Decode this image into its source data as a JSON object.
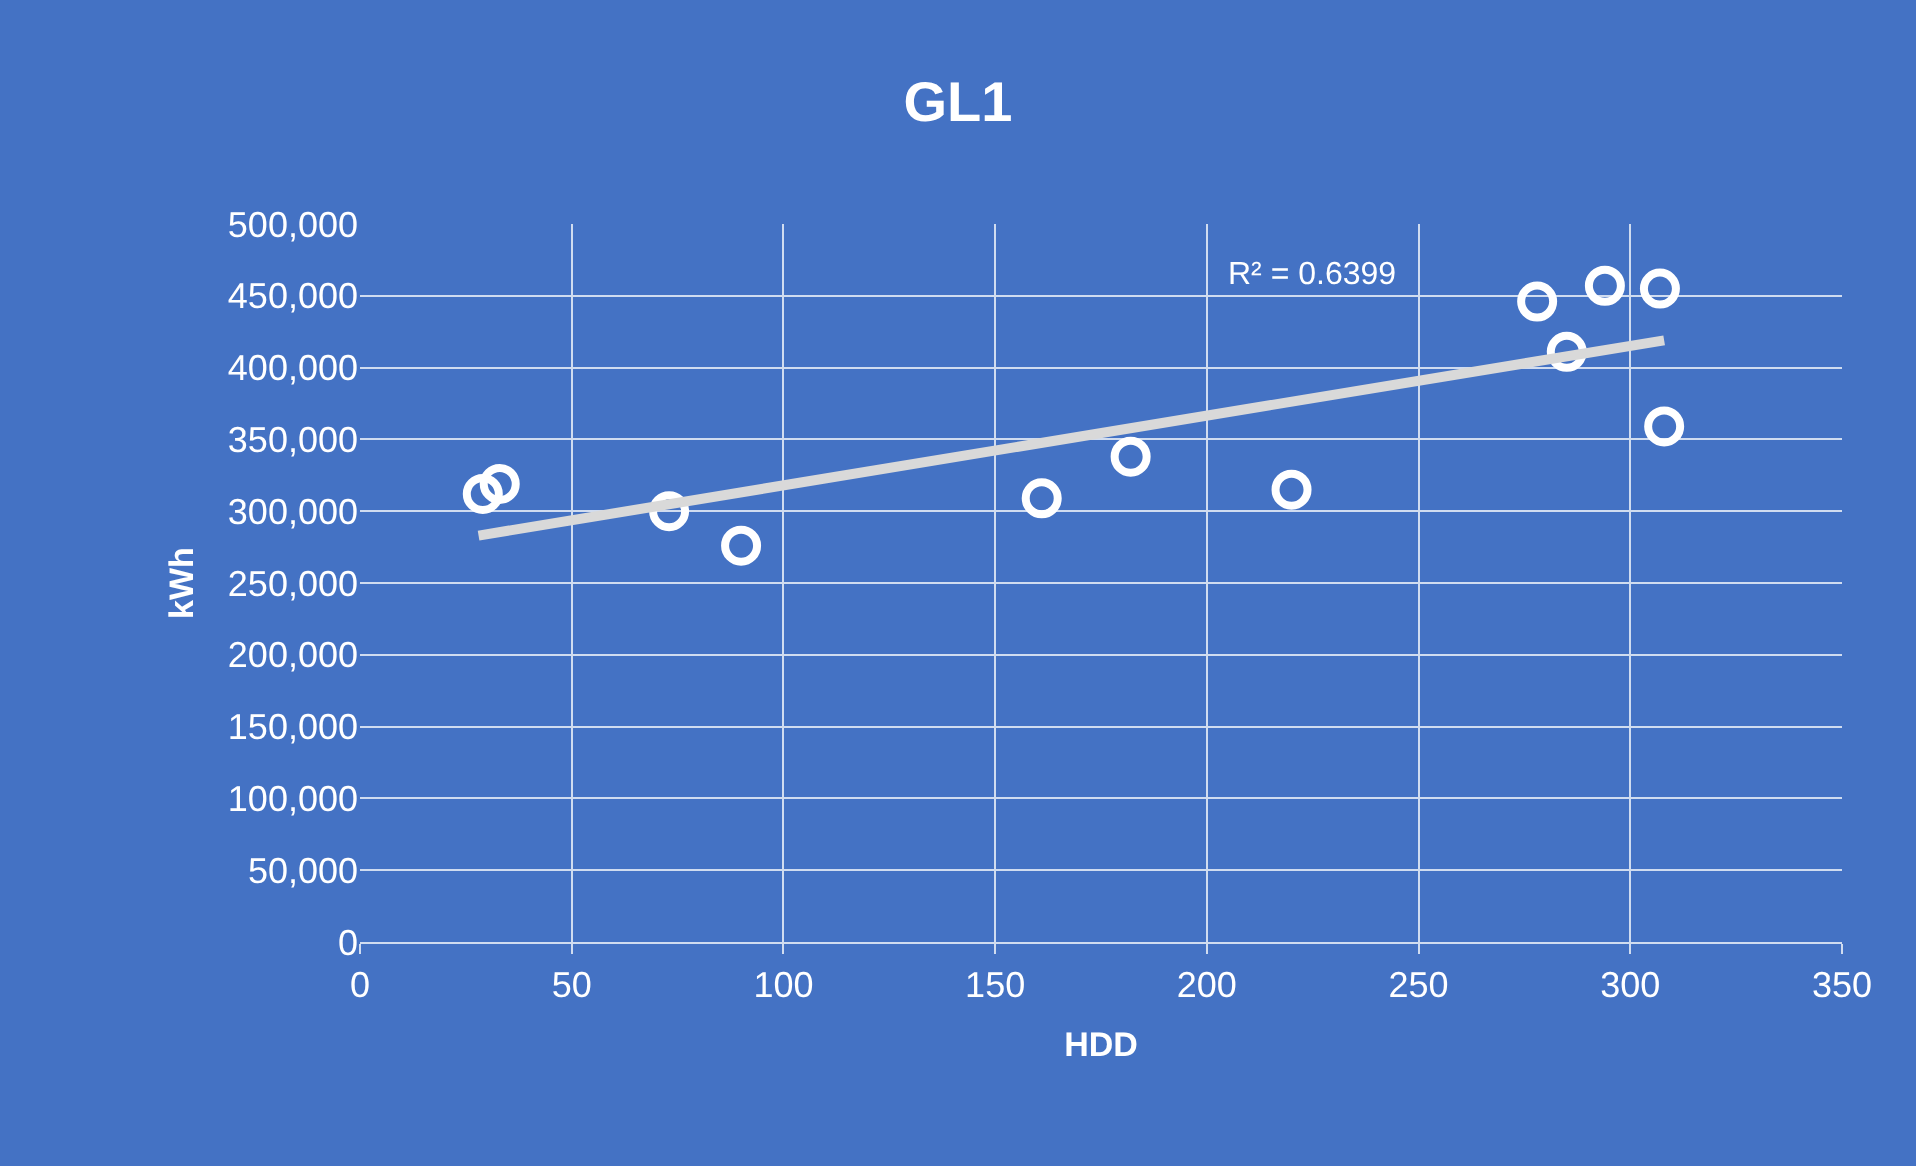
{
  "chart_data": {
    "type": "scatter",
    "title": "GL1",
    "xlabel": "HDD",
    "ylabel": "kWh",
    "xlim": [
      0,
      350
    ],
    "xticks": [
      0,
      50,
      100,
      150,
      200,
      250,
      300,
      350
    ],
    "ylim": [
      0,
      500000
    ],
    "yticks": [
      {
        "value": 0,
        "label": "0"
      },
      {
        "value": 50000,
        "label": "50,000"
      },
      {
        "value": 100000,
        "label": "100,000"
      },
      {
        "value": 150000,
        "label": "150,000"
      },
      {
        "value": 200000,
        "label": "200,000"
      },
      {
        "value": 250000,
        "label": "250,000"
      },
      {
        "value": 300000,
        "label": "300,000"
      },
      {
        "value": 350000,
        "label": "350,000"
      },
      {
        "value": 400000,
        "label": "400,000"
      },
      {
        "value": 450000,
        "label": "450,000"
      },
      {
        "value": 500000,
        "label": "500,000"
      }
    ],
    "grid": true,
    "series": [
      {
        "marker": "circle",
        "color": "#ffffff",
        "x": [
          29,
          33,
          73,
          90,
          161,
          182,
          220,
          278,
          285,
          294,
          307,
          308
        ],
        "values": [
          312000,
          319000,
          300000,
          276000,
          309000,
          338000,
          315000,
          446000,
          411000,
          457000,
          455000,
          359000
        ]
      },
      {
        "type": "line",
        "color": "#d9d9d9",
        "x": [
          28,
          308
        ],
        "values": [
          283000,
          419000
        ]
      }
    ],
    "annotations": [
      "R² = 0.6399"
    ]
  }
}
